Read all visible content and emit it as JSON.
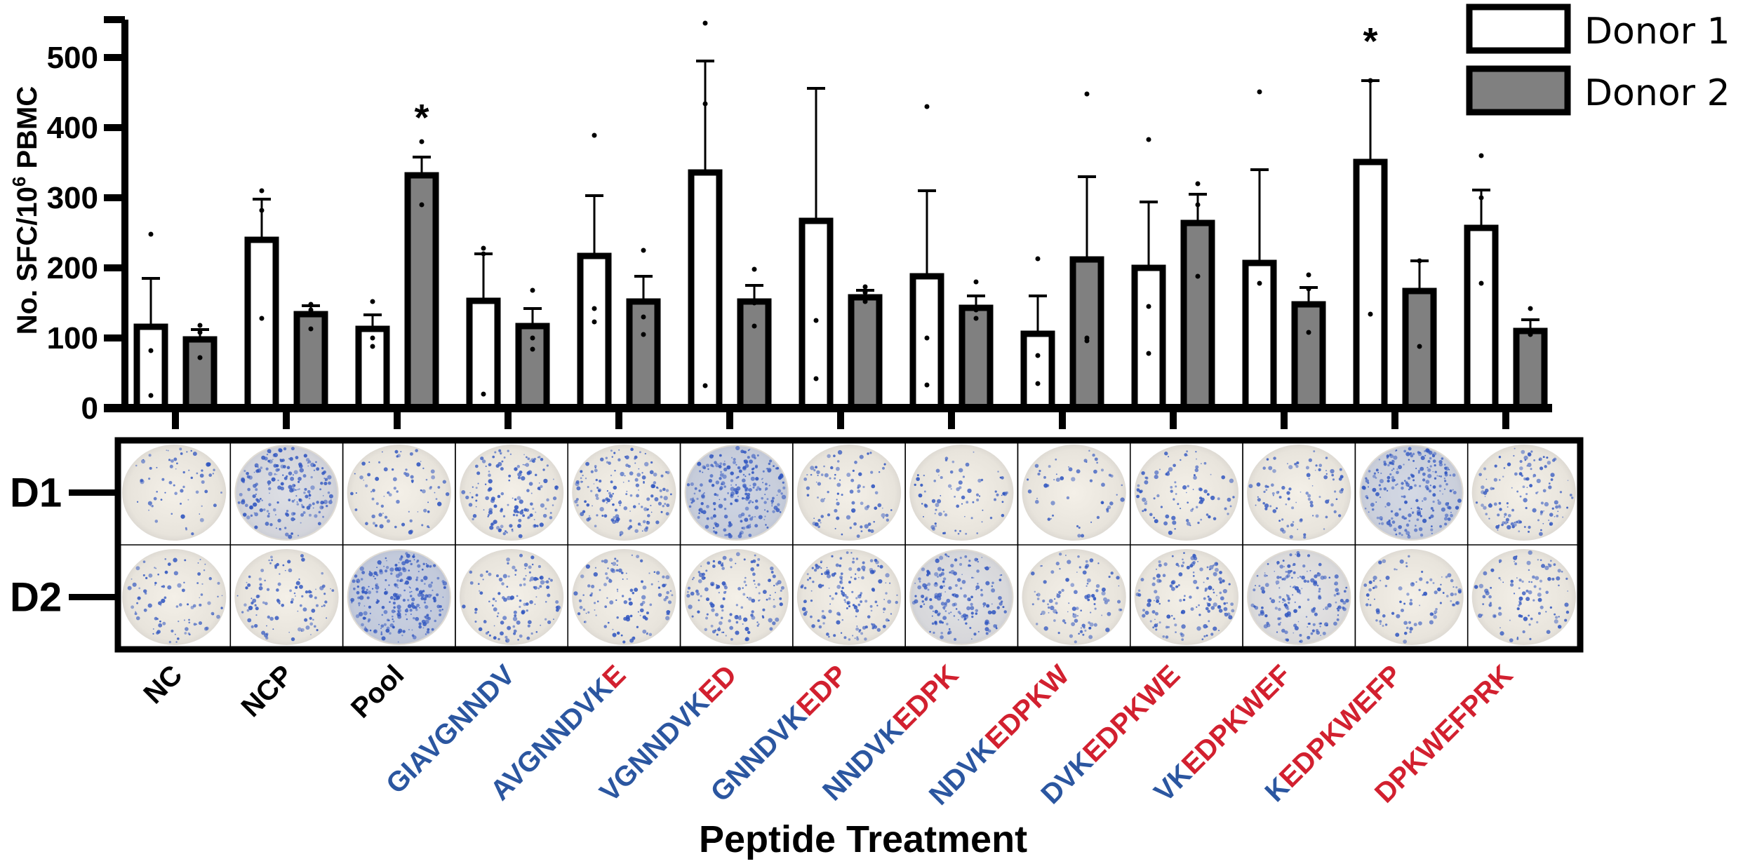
{
  "chart_data": {
    "type": "bar",
    "title": "",
    "xlabel": "Peptide Treatment",
    "ylabel": "No. SFC/10",
    "ylabel_sup": "6",
    "ylabel_tail": " PBMC",
    "ylim": [
      0,
      550
    ],
    "yticks": [
      "0",
      "100",
      "200",
      "300",
      "400",
      "500"
    ],
    "grid": false,
    "legend_position": "top-right",
    "colors": {
      "Donor 1": "#ffffff",
      "Donor 2": "#808080",
      "seq_blue": "#2b56a0",
      "seq_red": "#d2202f"
    },
    "categories": [
      {
        "parts": [
          {
            "t": "NC",
            "c": "black"
          }
        ]
      },
      {
        "parts": [
          {
            "t": "NCP",
            "c": "black"
          }
        ]
      },
      {
        "parts": [
          {
            "t": "Pool",
            "c": "black"
          }
        ]
      },
      {
        "parts": [
          {
            "t": "GIAVGNNDV",
            "c": "blue"
          }
        ]
      },
      {
        "parts": [
          {
            "t": "AVGNNDVK",
            "c": "blue"
          },
          {
            "t": "E",
            "c": "red"
          }
        ]
      },
      {
        "parts": [
          {
            "t": "VGNNDVK",
            "c": "blue"
          },
          {
            "t": "ED",
            "c": "red"
          }
        ]
      },
      {
        "parts": [
          {
            "t": "GNNDVK",
            "c": "blue"
          },
          {
            "t": "EDP",
            "c": "red"
          }
        ]
      },
      {
        "parts": [
          {
            "t": "NNDVK",
            "c": "blue"
          },
          {
            "t": "EDPK",
            "c": "red"
          }
        ]
      },
      {
        "parts": [
          {
            "t": "NDVK",
            "c": "blue"
          },
          {
            "t": "EDPKW",
            "c": "red"
          }
        ]
      },
      {
        "parts": [
          {
            "t": "DVK",
            "c": "blue"
          },
          {
            "t": "EDPKWE",
            "c": "red"
          }
        ]
      },
      {
        "parts": [
          {
            "t": "VK",
            "c": "blue"
          },
          {
            "t": "EDPKWEF",
            "c": "red"
          }
        ]
      },
      {
        "parts": [
          {
            "t": "K",
            "c": "blue"
          },
          {
            "t": "EDPKWEFP",
            "c": "red"
          }
        ]
      },
      {
        "parts": [
          {
            "t": "DPKWEFPRK",
            "c": "red"
          }
        ]
      }
    ],
    "series": [
      {
        "name": "Donor 1",
        "values": [
          116,
          240,
          113,
          153,
          217,
          336,
          267,
          188,
          106,
          200,
          207,
          351,
          257
        ],
        "error_upper": [
          185,
          298,
          133,
          220,
          303,
          495,
          456,
          310,
          160,
          294,
          340,
          467,
          311
        ],
        "points": [
          [
            248,
            82,
            18
          ],
          [
            310,
            282,
            128
          ],
          [
            152,
            100,
            88
          ],
          [
            228,
            220,
            20
          ],
          [
            389,
            142,
            123
          ],
          [
            549,
            434,
            32
          ],
          [
            125,
            42,
            0
          ],
          [
            430,
            100,
            33
          ],
          [
            213,
            75,
            35
          ],
          [
            383,
            145,
            78
          ],
          [
            451,
            178,
            0
          ],
          [
            467,
            134,
            467
          ],
          [
            360,
            300,
            178
          ]
        ],
        "significant": [
          false,
          false,
          false,
          false,
          false,
          false,
          false,
          false,
          false,
          false,
          false,
          true,
          false
        ]
      },
      {
        "name": "Donor 2",
        "values": [
          98,
          134,
          332,
          117,
          152,
          152,
          158,
          143,
          212,
          264,
          148,
          167,
          110
        ],
        "error_upper": [
          112,
          146,
          358,
          142,
          188,
          175,
          168,
          160,
          330,
          305,
          172,
          210,
          126
        ],
        "points": [
          [
            118,
            108,
            72
          ],
          [
            148,
            140,
            113
          ],
          [
            380,
            290,
            0
          ],
          [
            168,
            100,
            84
          ],
          [
            225,
            130,
            105
          ],
          [
            198,
            150,
            117
          ],
          [
            173,
            165,
            152
          ],
          [
            180,
            140,
            128
          ],
          [
            448,
            100,
            96
          ],
          [
            320,
            290,
            188
          ],
          [
            190,
            170,
            108
          ],
          [
            210,
            88,
            210
          ],
          [
            142,
            108,
            105
          ]
        ],
        "significant": [
          false,
          false,
          true,
          false,
          false,
          false,
          false,
          false,
          false,
          false,
          false,
          false,
          false
        ]
      }
    ],
    "legend": [
      "Donor 1",
      "Donor 2"
    ],
    "significance_marker": "*"
  },
  "plate_panel": {
    "row_labels": [
      "D1",
      "D2"
    ],
    "density_d1": [
      0.25,
      0.75,
      0.3,
      0.55,
      0.6,
      0.9,
      0.35,
      0.3,
      0.2,
      0.35,
      0.35,
      0.85,
      0.5
    ],
    "density_d2": [
      0.35,
      0.4,
      0.95,
      0.45,
      0.45,
      0.55,
      0.6,
      0.7,
      0.4,
      0.55,
      0.65,
      0.35,
      0.4
    ]
  }
}
